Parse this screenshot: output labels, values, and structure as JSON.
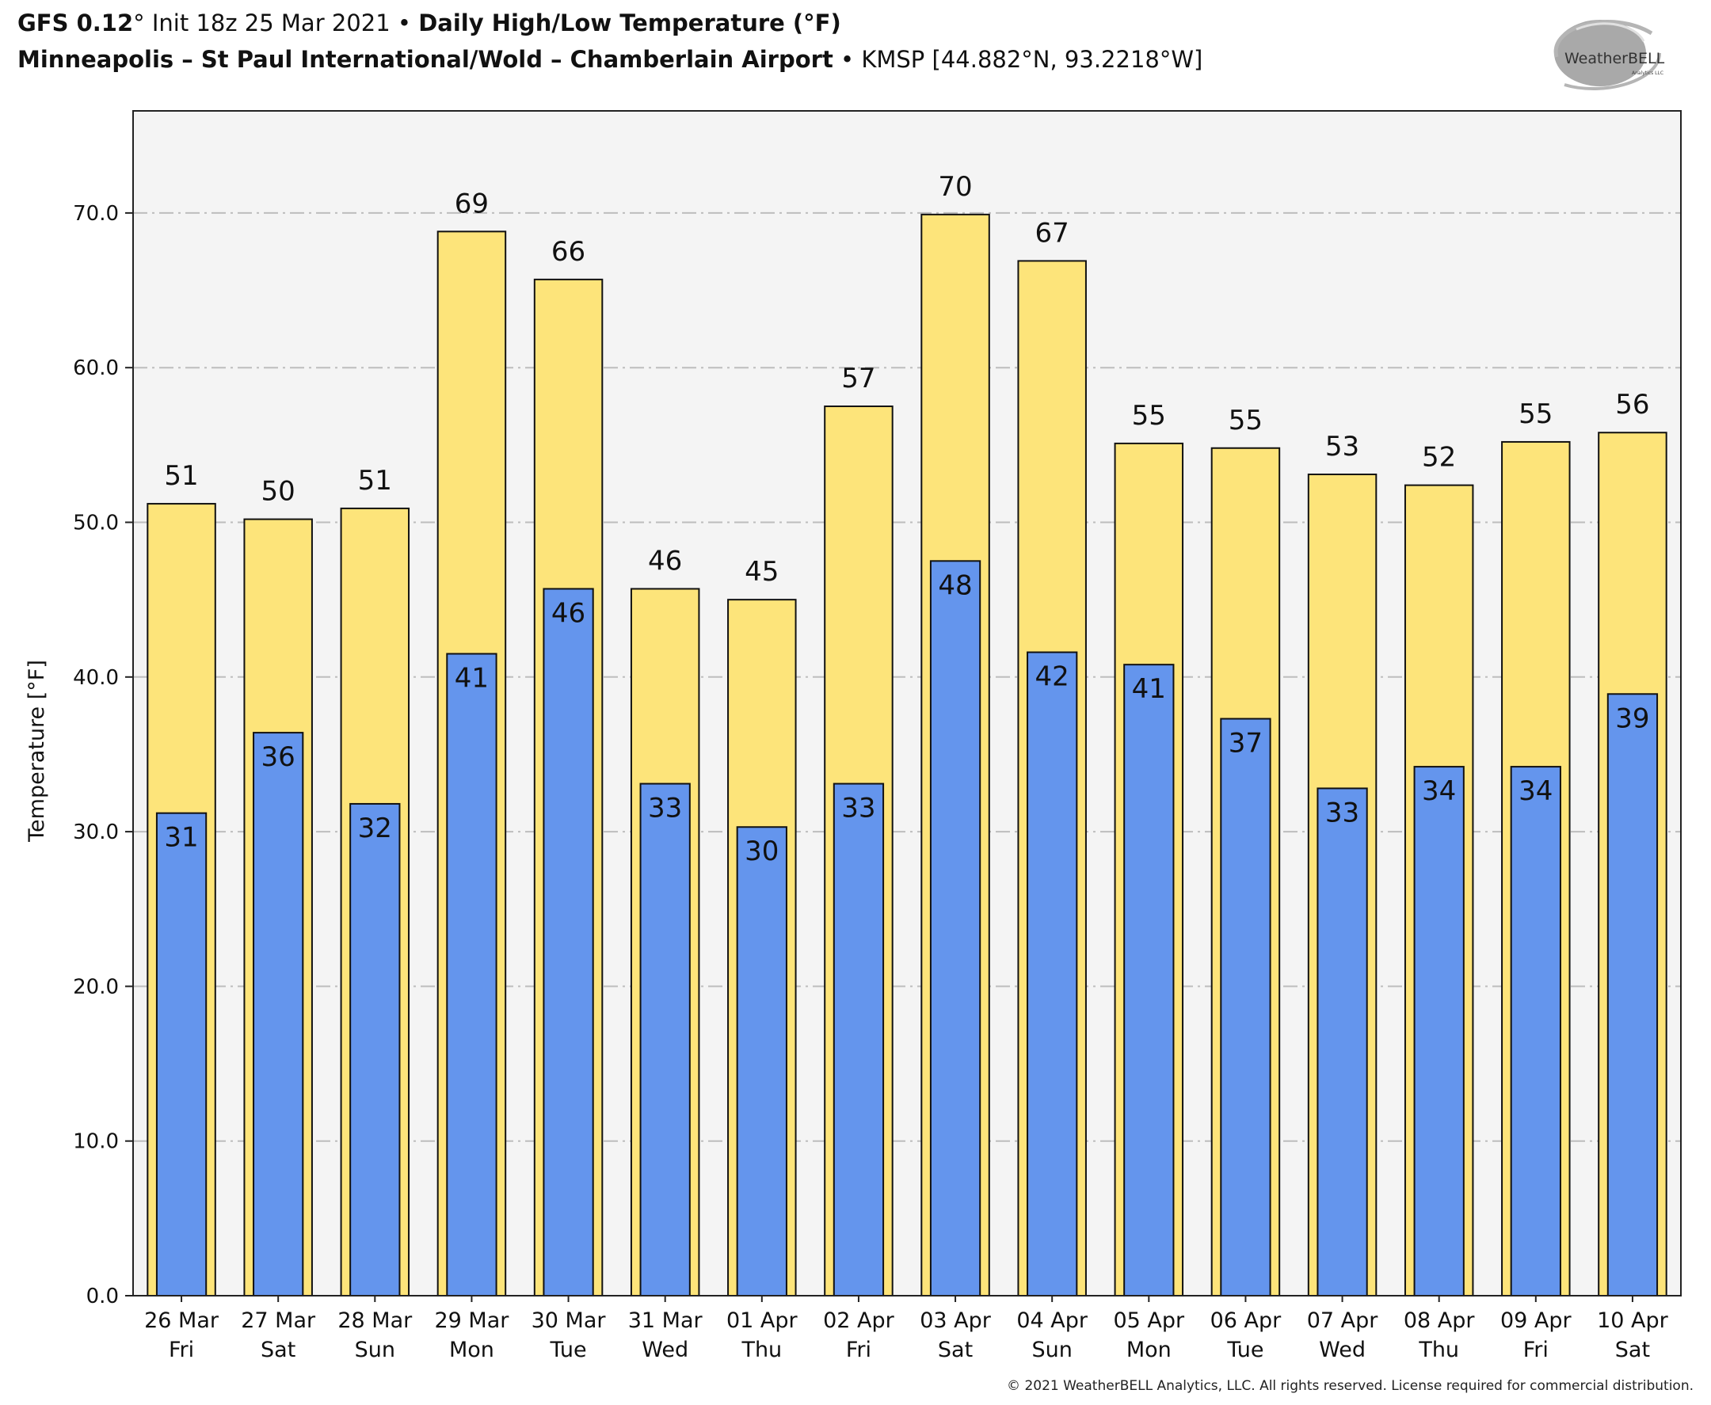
{
  "header": {
    "model": "GFS 0.12",
    "model_degree": "°",
    "init": " Init 18z 25 Mar 2021",
    "separator": " • ",
    "product": "Daily High/Low Temperature (°F)",
    "station_name": "Minneapolis – St Paul International/Wold – Chamberlain Airport",
    "station_sep": " • ",
    "station_id": "KMSP [44.882°N, 93.2218°W]"
  },
  "logo": {
    "main": "WeatherBELL",
    "sub": "Analytics LLC"
  },
  "footer": {
    "copyright": "© 2021 WeatherBELL Analytics, LLC. All rights reserved. License required for commercial distribution."
  },
  "colors": {
    "high": "#FDE47A",
    "low": "#6495ED",
    "plot_bg": "#F4F4F4",
    "grid": "#BDBDBD",
    "edge": "#111111"
  },
  "chart_data": {
    "type": "bar",
    "title": "Daily High/Low Temperature (°F)",
    "xlabel": "",
    "ylabel": "Temperature [°F]",
    "ylim": [
      0,
      76.6
    ],
    "yticks": [
      0,
      10,
      20,
      30,
      40,
      50,
      60,
      70
    ],
    "ytick_labels": [
      "0.0",
      "10.0",
      "20.0",
      "30.0",
      "40.0",
      "50.0",
      "60.0",
      "70.0"
    ],
    "grid": true,
    "legend": "none",
    "categories": [
      [
        "26 Mar",
        "Fri"
      ],
      [
        "27 Mar",
        "Sat"
      ],
      [
        "28 Mar",
        "Sun"
      ],
      [
        "29 Mar",
        "Mon"
      ],
      [
        "30 Mar",
        "Tue"
      ],
      [
        "31 Mar",
        "Wed"
      ],
      [
        "01 Apr",
        "Thu"
      ],
      [
        "02 Apr",
        "Fri"
      ],
      [
        "03 Apr",
        "Sat"
      ],
      [
        "04 Apr",
        "Sun"
      ],
      [
        "05 Apr",
        "Mon"
      ],
      [
        "06 Apr",
        "Tue"
      ],
      [
        "07 Apr",
        "Wed"
      ],
      [
        "08 Apr",
        "Thu"
      ],
      [
        "09 Apr",
        "Fri"
      ],
      [
        "10 Apr",
        "Sat"
      ]
    ],
    "series": [
      {
        "name": "High",
        "values": [
          51.2,
          50.2,
          50.9,
          68.8,
          65.7,
          45.7,
          45.0,
          57.5,
          69.9,
          66.9,
          55.1,
          54.8,
          53.1,
          52.4,
          55.2,
          55.8
        ],
        "labels": [
          "51",
          "50",
          "51",
          "69",
          "66",
          "46",
          "45",
          "57",
          "70",
          "67",
          "55",
          "55",
          "53",
          "52",
          "55",
          "56"
        ]
      },
      {
        "name": "Low",
        "values": [
          31.2,
          36.4,
          31.8,
          41.5,
          45.7,
          33.1,
          30.3,
          33.1,
          47.5,
          41.6,
          40.8,
          37.3,
          32.8,
          34.2,
          34.2,
          38.9
        ],
        "labels": [
          "31",
          "36",
          "32",
          "41",
          "46",
          "33",
          "30",
          "33",
          "48",
          "42",
          "41",
          "37",
          "33",
          "34",
          "34",
          "39"
        ]
      }
    ]
  }
}
